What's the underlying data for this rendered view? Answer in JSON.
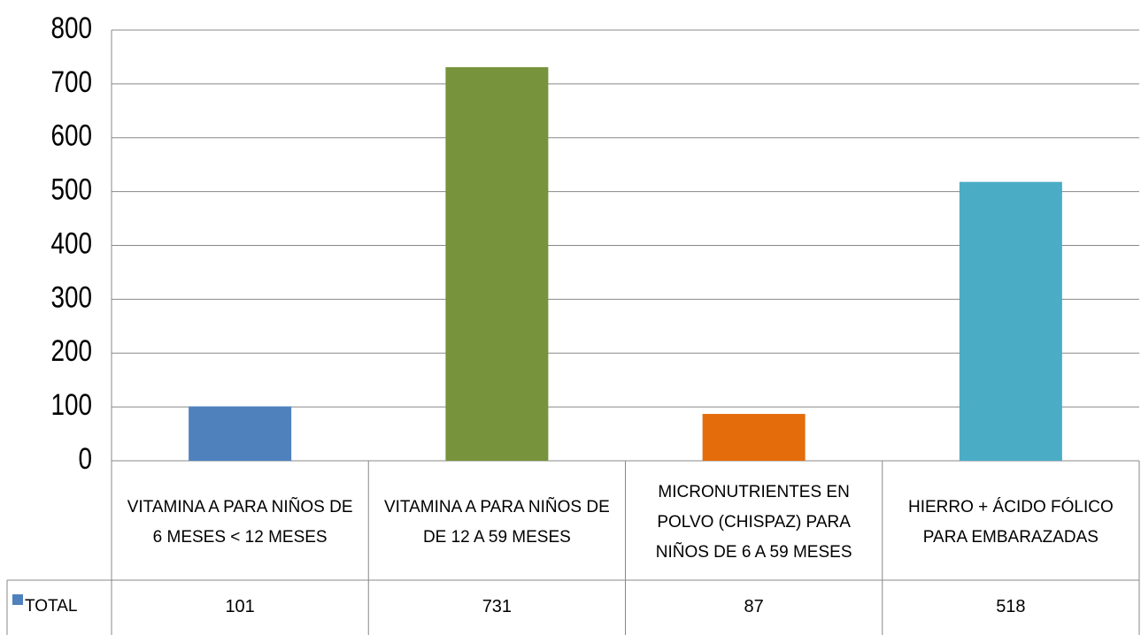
{
  "chart_data": {
    "type": "bar",
    "categories": [
      "VITAMINA A PARA NIÑOS DE 6 MESES < 12 MESES",
      "VITAMINA A PARA NIÑOS DE DE 12 A 59 MESES",
      "MICRONUTRIENTES EN POLVO (CHISPAZ) PARA NIÑOS DE 6 A 59 MESES",
      "HIERRO + ÁCIDO FÓLICO PARA EMBARAZADAS"
    ],
    "series": [
      {
        "name": "TOTAL",
        "color": "#4f81bd",
        "values": [
          101,
          731,
          87,
          518
        ]
      }
    ],
    "colors": [
      "#4f81bd",
      "#77933c",
      "#e46c0a",
      "#4bacc6"
    ],
    "ylim": [
      0,
      800
    ],
    "yticks": [
      0,
      100,
      200,
      300,
      400,
      500,
      600,
      700,
      800
    ],
    "grid": true
  }
}
